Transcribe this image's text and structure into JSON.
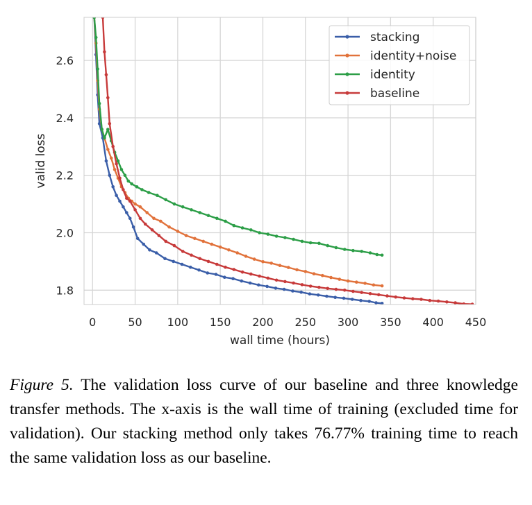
{
  "chart_data": {
    "type": "line",
    "xlabel": "wall time (hours)",
    "ylabel": "valid loss",
    "xlim": [
      -10,
      450
    ],
    "ylim": [
      1.75,
      2.75
    ],
    "xticks": [
      0,
      50,
      100,
      150,
      200,
      250,
      300,
      350,
      400,
      450
    ],
    "yticks": [
      1.8,
      2.0,
      2.2,
      2.4,
      2.6
    ],
    "xtick_labels": [
      "0",
      "50",
      "100",
      "150",
      "200",
      "250",
      "300",
      "350",
      "400",
      "450"
    ],
    "ytick_labels": [
      "1.8",
      "2.0",
      "2.2",
      "2.4",
      "2.6"
    ],
    "grid": true,
    "legend_position": "top-right",
    "series": [
      {
        "name": "stacking",
        "color": "#3a5ea8",
        "points": [
          [
            2,
            2.75
          ],
          [
            4,
            2.62
          ],
          [
            6,
            2.48
          ],
          [
            8,
            2.38
          ],
          [
            12,
            2.33
          ],
          [
            16,
            2.25
          ],
          [
            20,
            2.2
          ],
          [
            24,
            2.16
          ],
          [
            28,
            2.13
          ],
          [
            32,
            2.11
          ],
          [
            36,
            2.09
          ],
          [
            40,
            2.07
          ],
          [
            44,
            2.05
          ],
          [
            48,
            2.02
          ],
          [
            53,
            1.98
          ],
          [
            60,
            1.96
          ],
          [
            67,
            1.94
          ],
          [
            75,
            1.93
          ],
          [
            85,
            1.91
          ],
          [
            95,
            1.9
          ],
          [
            105,
            1.89
          ],
          [
            115,
            1.88
          ],
          [
            125,
            1.87
          ],
          [
            135,
            1.86
          ],
          [
            145,
            1.855
          ],
          [
            155,
            1.845
          ],
          [
            165,
            1.84
          ],
          [
            175,
            1.832
          ],
          [
            185,
            1.825
          ],
          [
            195,
            1.818
          ],
          [
            205,
            1.813
          ],
          [
            215,
            1.807
          ],
          [
            225,
            1.803
          ],
          [
            235,
            1.797
          ],
          [
            245,
            1.793
          ],
          [
            255,
            1.787
          ],
          [
            265,
            1.783
          ],
          [
            275,
            1.779
          ],
          [
            285,
            1.775
          ],
          [
            295,
            1.772
          ],
          [
            305,
            1.768
          ],
          [
            315,
            1.764
          ],
          [
            325,
            1.761
          ],
          [
            333,
            1.756
          ],
          [
            340,
            1.754
          ]
        ]
      },
      {
        "name": "identity+noise",
        "color": "#e1723b",
        "points": [
          [
            2,
            2.75
          ],
          [
            4,
            2.66
          ],
          [
            6,
            2.53
          ],
          [
            8,
            2.43
          ],
          [
            11,
            2.36
          ],
          [
            14,
            2.33
          ],
          [
            18,
            2.29
          ],
          [
            22,
            2.26
          ],
          [
            26,
            2.22
          ],
          [
            30,
            2.19
          ],
          [
            34,
            2.16
          ],
          [
            38,
            2.14
          ],
          [
            42,
            2.12
          ],
          [
            46,
            2.11
          ],
          [
            50,
            2.1
          ],
          [
            56,
            2.09
          ],
          [
            64,
            2.07
          ],
          [
            72,
            2.05
          ],
          [
            80,
            2.04
          ],
          [
            90,
            2.02
          ],
          [
            100,
            2.005
          ],
          [
            110,
            1.99
          ],
          [
            120,
            1.98
          ],
          [
            130,
            1.97
          ],
          [
            140,
            1.96
          ],
          [
            150,
            1.95
          ],
          [
            160,
            1.94
          ],
          [
            170,
            1.93
          ],
          [
            180,
            1.918
          ],
          [
            190,
            1.908
          ],
          [
            200,
            1.899
          ],
          [
            210,
            1.894
          ],
          [
            220,
            1.886
          ],
          [
            230,
            1.879
          ],
          [
            240,
            1.871
          ],
          [
            250,
            1.865
          ],
          [
            260,
            1.857
          ],
          [
            270,
            1.851
          ],
          [
            280,
            1.844
          ],
          [
            290,
            1.838
          ],
          [
            300,
            1.832
          ],
          [
            310,
            1.828
          ],
          [
            320,
            1.824
          ],
          [
            330,
            1.818
          ],
          [
            340,
            1.815
          ]
        ]
      },
      {
        "name": "identity",
        "color": "#2c9e47",
        "points": [
          [
            2,
            2.75
          ],
          [
            4,
            2.68
          ],
          [
            6,
            2.57
          ],
          [
            8,
            2.45
          ],
          [
            11,
            2.36
          ],
          [
            14,
            2.33
          ],
          [
            18,
            2.36
          ],
          [
            22,
            2.32
          ],
          [
            26,
            2.28
          ],
          [
            30,
            2.25
          ],
          [
            34,
            2.22
          ],
          [
            38,
            2.2
          ],
          [
            42,
            2.18
          ],
          [
            46,
            2.17
          ],
          [
            52,
            2.16
          ],
          [
            58,
            2.15
          ],
          [
            66,
            2.14
          ],
          [
            76,
            2.13
          ],
          [
            86,
            2.115
          ],
          [
            96,
            2.1
          ],
          [
            106,
            2.09
          ],
          [
            116,
            2.08
          ],
          [
            126,
            2.07
          ],
          [
            136,
            2.06
          ],
          [
            146,
            2.05
          ],
          [
            156,
            2.04
          ],
          [
            166,
            2.025
          ],
          [
            176,
            2.017
          ],
          [
            186,
            2.01
          ],
          [
            196,
            2.0
          ],
          [
            206,
            1.995
          ],
          [
            216,
            1.988
          ],
          [
            226,
            1.983
          ],
          [
            236,
            1.977
          ],
          [
            246,
            1.97
          ],
          [
            256,
            1.965
          ],
          [
            266,
            1.963
          ],
          [
            276,
            1.955
          ],
          [
            286,
            1.948
          ],
          [
            296,
            1.942
          ],
          [
            306,
            1.938
          ],
          [
            316,
            1.935
          ],
          [
            326,
            1.93
          ],
          [
            334,
            1.924
          ],
          [
            340,
            1.922
          ]
        ]
      },
      {
        "name": "baseline",
        "color": "#c73a3a",
        "points": [
          [
            12,
            2.75
          ],
          [
            14,
            2.63
          ],
          [
            16,
            2.55
          ],
          [
            18,
            2.47
          ],
          [
            20,
            2.38
          ],
          [
            24,
            2.3
          ],
          [
            28,
            2.24
          ],
          [
            32,
            2.19
          ],
          [
            36,
            2.15
          ],
          [
            40,
            2.12
          ],
          [
            44,
            2.11
          ],
          [
            50,
            2.08
          ],
          [
            56,
            2.05
          ],
          [
            62,
            2.03
          ],
          [
            70,
            2.01
          ],
          [
            78,
            1.99
          ],
          [
            86,
            1.97
          ],
          [
            96,
            1.955
          ],
          [
            106,
            1.935
          ],
          [
            116,
            1.922
          ],
          [
            126,
            1.91
          ],
          [
            136,
            1.9
          ],
          [
            146,
            1.89
          ],
          [
            156,
            1.88
          ],
          [
            166,
            1.872
          ],
          [
            176,
            1.863
          ],
          [
            186,
            1.856
          ],
          [
            196,
            1.849
          ],
          [
            206,
            1.842
          ],
          [
            216,
            1.835
          ],
          [
            226,
            1.83
          ],
          [
            236,
            1.825
          ],
          [
            246,
            1.819
          ],
          [
            256,
            1.814
          ],
          [
            266,
            1.81
          ],
          [
            276,
            1.806
          ],
          [
            286,
            1.803
          ],
          [
            296,
            1.8
          ],
          [
            306,
            1.796
          ],
          [
            316,
            1.792
          ],
          [
            326,
            1.788
          ],
          [
            336,
            1.784
          ],
          [
            346,
            1.78
          ],
          [
            356,
            1.776
          ],
          [
            366,
            1.773
          ],
          [
            376,
            1.77
          ],
          [
            386,
            1.768
          ],
          [
            396,
            1.764
          ],
          [
            406,
            1.762
          ],
          [
            416,
            1.759
          ],
          [
            426,
            1.756
          ],
          [
            436,
            1.752
          ],
          [
            446,
            1.751
          ]
        ]
      }
    ]
  },
  "caption": {
    "figure_label": "Figure 5.",
    "text": " The validation loss curve of our baseline and three knowledge transfer methods. The x-axis is the wall time of training (excluded time for validation). Our stacking method only takes 76.77% training time to reach the same validation loss as our baseline."
  }
}
